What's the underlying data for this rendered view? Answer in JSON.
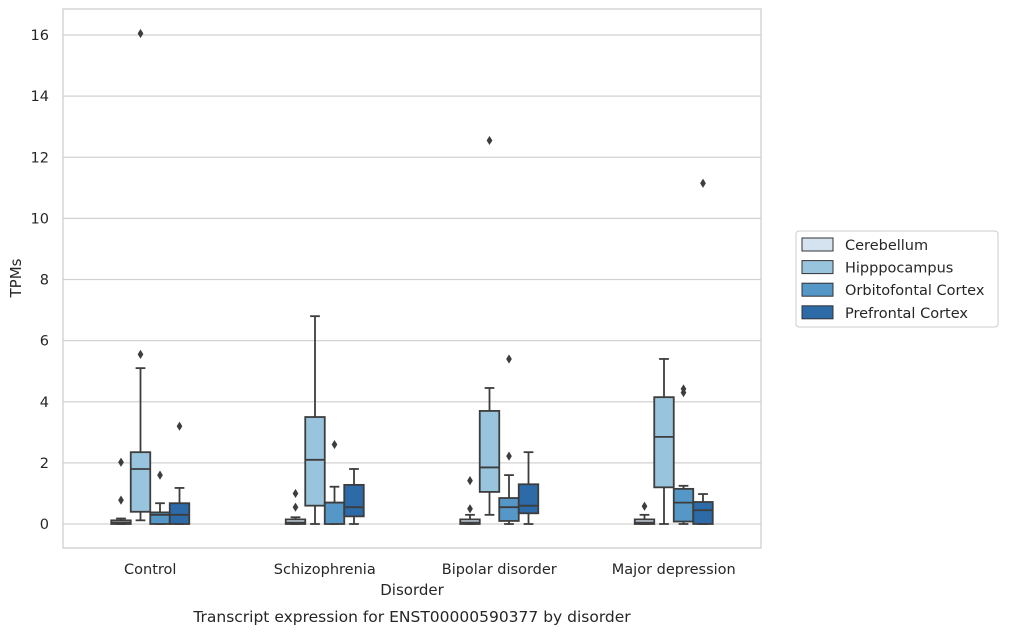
{
  "chart_data": {
    "type": "boxplot",
    "caption": "Transcript expression for ENST00000590377 by disorder",
    "xlabel": "Disorder",
    "ylabel": "TPMs",
    "ylim": [
      -0.8,
      16.85
    ],
    "yticks": [
      0,
      2,
      4,
      6,
      8,
      10,
      12,
      14,
      16
    ],
    "grid": true,
    "legend_position": "right",
    "categories": [
      "Control",
      "Schizophrenia",
      "Bipolar disorder",
      "Major depression"
    ],
    "series": [
      {
        "name": "Cerebellum",
        "color": "#d4e3ef",
        "boxes": [
          {
            "whislo": 0,
            "q1": 0,
            "med": 0.05,
            "q3": 0.12,
            "whishi": 0.18,
            "fliers": [
              0.78,
              2.02
            ]
          },
          {
            "whislo": 0,
            "q1": 0,
            "med": 0.05,
            "q3": 0.15,
            "whishi": 0.22,
            "fliers": [
              0.55,
              1.0
            ]
          },
          {
            "whislo": 0,
            "q1": 0,
            "med": 0.05,
            "q3": 0.15,
            "whishi": 0.3,
            "fliers": [
              0.5,
              1.42
            ]
          },
          {
            "whislo": 0,
            "q1": 0,
            "med": 0.05,
            "q3": 0.15,
            "whishi": 0.3,
            "fliers": [
              0.58
            ]
          }
        ]
      },
      {
        "name": "Hipppocampus",
        "color": "#99c4dd",
        "boxes": [
          {
            "whislo": 0.12,
            "q1": 0.4,
            "med": 1.8,
            "q3": 2.35,
            "whishi": 5.1,
            "fliers": [
              5.55,
              16.05
            ]
          },
          {
            "whislo": 0,
            "q1": 0.6,
            "med": 2.1,
            "q3": 3.5,
            "whishi": 6.8,
            "fliers": []
          },
          {
            "whislo": 0.3,
            "q1": 1.05,
            "med": 1.85,
            "q3": 3.7,
            "whishi": 4.45,
            "fliers": [
              12.55
            ]
          },
          {
            "whislo": 0,
            "q1": 1.2,
            "med": 2.85,
            "q3": 4.15,
            "whishi": 5.4,
            "fliers": []
          }
        ]
      },
      {
        "name": "Orbitofontal Cortex",
        "color": "#5597c7",
        "boxes": [
          {
            "whislo": 0,
            "q1": 0,
            "med": 0.3,
            "q3": 0.38,
            "whishi": 0.68,
            "fliers": [
              1.6
            ]
          },
          {
            "whislo": 0,
            "q1": 0,
            "med": 0.7,
            "q3": 0.7,
            "whishi": 1.22,
            "fliers": [
              2.6
            ]
          },
          {
            "whislo": 0,
            "q1": 0.1,
            "med": 0.55,
            "q3": 0.85,
            "whishi": 1.6,
            "fliers": [
              2.22,
              5.4
            ]
          },
          {
            "whislo": 0,
            "q1": 0.08,
            "med": 0.7,
            "q3": 1.15,
            "whishi": 1.25,
            "fliers": [
              4.3,
              4.42
            ]
          }
        ]
      },
      {
        "name": "Prefrontal Cortex",
        "color": "#2c6aa8",
        "boxes": [
          {
            "whislo": 0,
            "q1": 0,
            "med": 0.3,
            "q3": 0.68,
            "whishi": 1.18,
            "fliers": [
              3.2
            ]
          },
          {
            "whislo": 0,
            "q1": 0.25,
            "med": 0.55,
            "q3": 1.28,
            "whishi": 1.8,
            "fliers": []
          },
          {
            "whislo": 0,
            "q1": 0.35,
            "med": 0.6,
            "q3": 1.3,
            "whishi": 2.35,
            "fliers": []
          },
          {
            "whislo": 0,
            "q1": 0,
            "med": 0.45,
            "q3": 0.72,
            "whishi": 0.98,
            "fliers": [
              11.15
            ]
          }
        ]
      }
    ]
  }
}
